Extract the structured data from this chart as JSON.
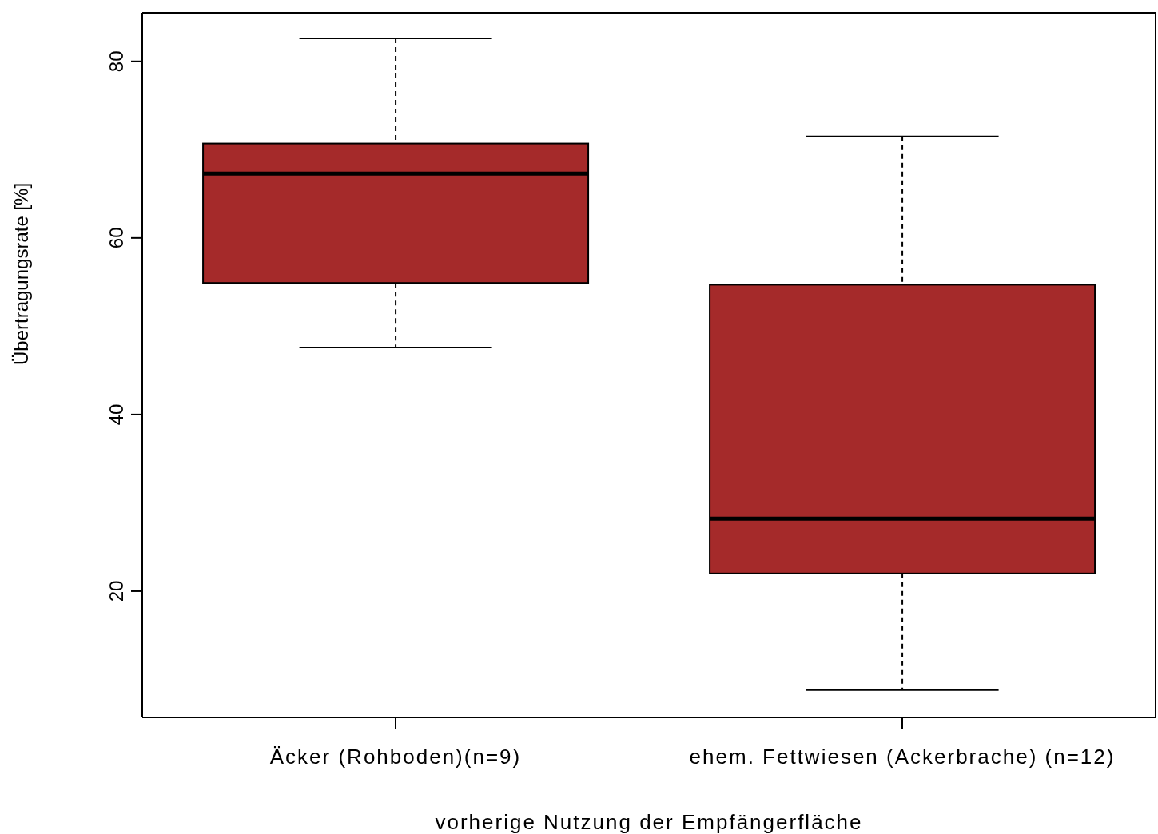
{
  "chart_data": {
    "type": "box",
    "xlabel": "vorherige Nutzung der Empfängerfläche",
    "ylabel": "Übertragungsrate [%]",
    "categories": [
      "Äcker (Rohboden)(n=9)",
      "ehem. Fettwiesen (Ackerbrache) (n=12)"
    ],
    "color": "#a52a2a",
    "boxes": [
      {
        "low": 47.6,
        "q1": 54.9,
        "median": 67.3,
        "q3": 70.7,
        "high": 82.6
      },
      {
        "low": 8.8,
        "q1": 22.0,
        "median": 28.2,
        "q3": 54.7,
        "high": 71.5
      }
    ],
    "ylim": [
      5.7,
      85.5
    ],
    "yticks": [
      20,
      40,
      60,
      80
    ],
    "grid": false
  }
}
